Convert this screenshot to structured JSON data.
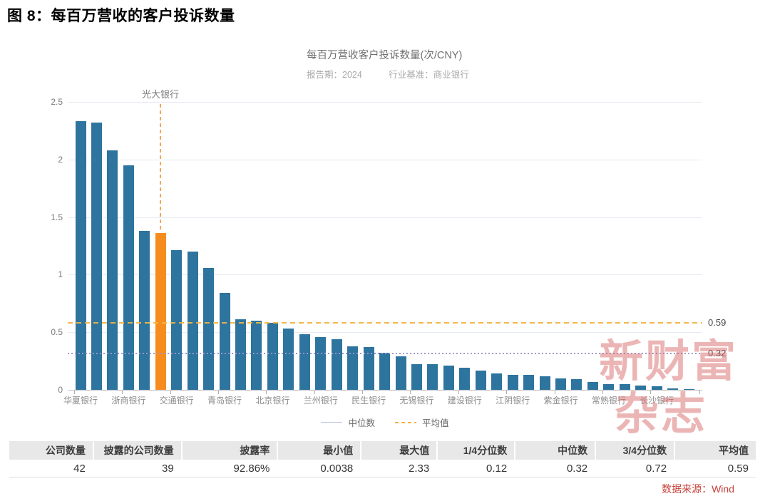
{
  "page": {
    "title": "图 8：每百万营收的客户投诉数量"
  },
  "chart": {
    "title": "每百万营收客户投诉数量(次/CNY)",
    "report_period_text": "报告期：2024",
    "industry_benchmark_text": "行业基准：商业银行"
  },
  "chart_data": {
    "type": "bar",
    "title": "每百万营收客户投诉数量(次/CNY)",
    "report_period": "2024",
    "industry_benchmark": "商业银行",
    "xlabel": "",
    "ylabel": "次/CNY",
    "ylim": [
      0,
      2.5
    ],
    "yticks": [
      0,
      0.5,
      1,
      1.5,
      2,
      2.5
    ],
    "grid": true,
    "legend_position": "bottom",
    "categories": [
      "华夏银行",
      "",
      "",
      "浙商银行",
      "",
      "",
      "交通银行",
      "",
      "",
      "青岛银行",
      "",
      "",
      "北京银行",
      "",
      "",
      "兰州银行",
      "",
      "",
      "民生银行",
      "",
      "",
      "无锡银行",
      "",
      "",
      "建设银行",
      "",
      "",
      "江阴银行",
      "",
      "",
      "紫金银行",
      "",
      "",
      "常熟银行",
      "",
      "",
      "长沙银行",
      "",
      ""
    ],
    "values": [
      2.33,
      2.32,
      2.08,
      1.95,
      1.38,
      1.36,
      1.21,
      1.2,
      1.06,
      0.84,
      0.61,
      0.6,
      0.58,
      0.53,
      0.48,
      0.46,
      0.44,
      0.38,
      0.37,
      0.32,
      0.29,
      0.22,
      0.22,
      0.21,
      0.19,
      0.17,
      0.14,
      0.13,
      0.13,
      0.12,
      0.1,
      0.09,
      0.07,
      0.05,
      0.05,
      0.04,
      0.03,
      0.01,
      0.0038
    ],
    "highlight": {
      "index": 5,
      "label": "光大银行",
      "color": "#f78c1e"
    },
    "mean": 0.59,
    "median": 0.32,
    "mean_label": "0.59",
    "median_label": "0.32",
    "colors": {
      "bar": "#2d749e",
      "highlight": "#f78c1e",
      "mean_line": "#f2b341",
      "median_line": "#9997cd",
      "grid": "#e6eaf1",
      "axis": "#bdbdbd"
    }
  },
  "legend": {
    "items": [
      {
        "label": "中位数",
        "style": "solid"
      },
      {
        "label": "平均值",
        "style": "dashed"
      }
    ]
  },
  "stats_table": {
    "columns": [
      {
        "label": "公司数量",
        "value": "42"
      },
      {
        "label": "披露的公司数量",
        "value": "39"
      },
      {
        "label": "披露率",
        "value": "92.86%"
      },
      {
        "label": "最小值",
        "value": "0.0038"
      },
      {
        "label": "最大值",
        "value": "2.33"
      },
      {
        "label": "1/4分位数",
        "value": "0.12"
      },
      {
        "label": "中位数",
        "value": "0.32"
      },
      {
        "label": "3/4分位数",
        "value": "0.72"
      },
      {
        "label": "平均值",
        "value": "0.59"
      }
    ]
  },
  "watermark": {
    "line1": "新财富",
    "line2": "杂志"
  },
  "source": {
    "text": "数据来源：Wind"
  }
}
